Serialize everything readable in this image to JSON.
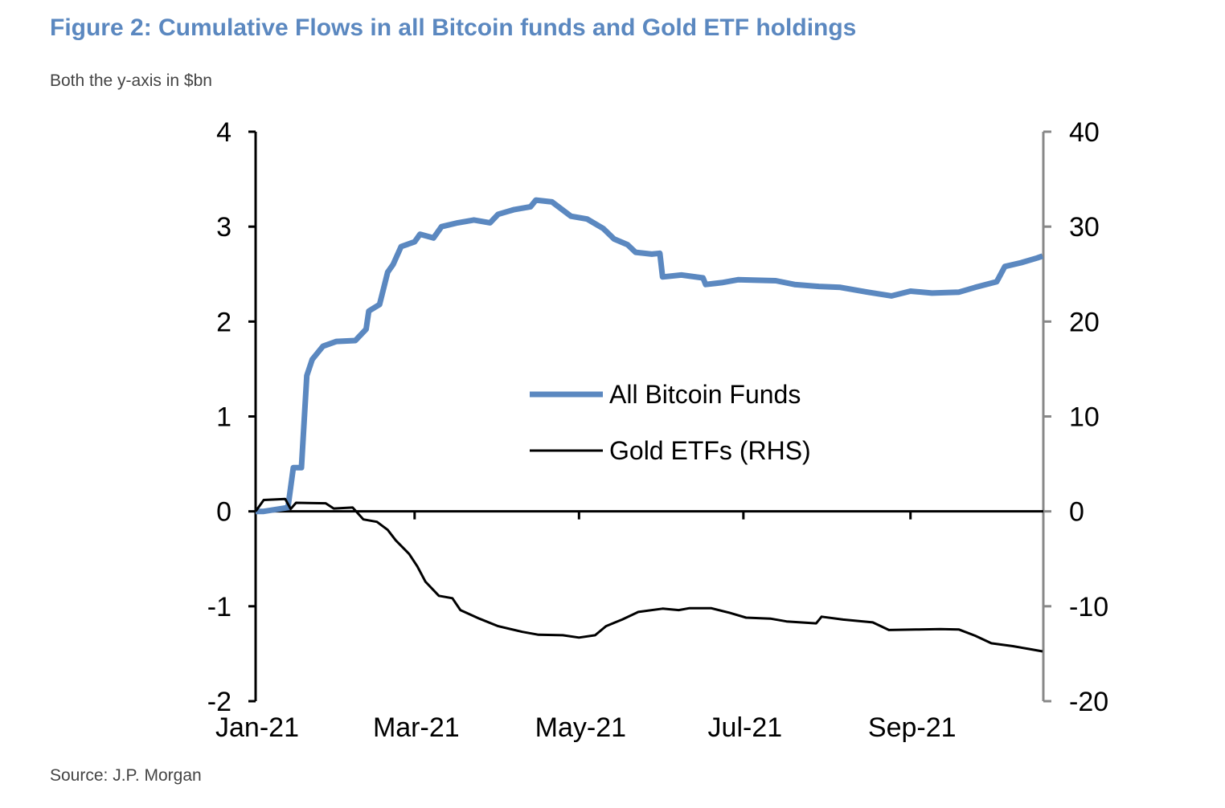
{
  "title": "Figure 2: Cumulative Flows in all Bitcoin funds and Gold ETF holdings",
  "subtitle": "Both the y-axis in $bn",
  "source": "Source: J.P. Morgan",
  "chart_data": {
    "type": "line",
    "title": "Figure 2: Cumulative Flows in all Bitcoin funds and Gold ETF holdings",
    "xlabel": "",
    "ylabel": "",
    "xlim": [
      "2021-01-01",
      "2021-10-20"
    ],
    "x_ticks": [
      {
        "date": "2021-01-01",
        "label": "Jan-21"
      },
      {
        "date": "2021-03-01",
        "label": "Mar-21"
      },
      {
        "date": "2021-05-01",
        "label": "May-21"
      },
      {
        "date": "2021-07-01",
        "label": "Jul-21"
      },
      {
        "date": "2021-09-01",
        "label": "Sep-21"
      }
    ],
    "ylim_left": [
      -2,
      4
    ],
    "y_ticks_left": [
      "4",
      "3",
      "2",
      "1",
      "0",
      "-1",
      "-2"
    ],
    "ylim_right": [
      -20,
      40
    ],
    "y_ticks_right": [
      "40",
      "30",
      "20",
      "10",
      "0",
      "-10",
      "-20"
    ],
    "grid": false,
    "legend_position": "center",
    "series": [
      {
        "name": "All Bitcoin Funds",
        "axis": "left",
        "color": "#5b88c0",
        "points": [
          [
            "2021-01-01",
            0
          ],
          [
            "2021-01-04",
            0
          ],
          [
            "2021-01-13",
            0.04
          ],
          [
            "2021-01-15",
            0.46
          ],
          [
            "2021-01-18",
            0.46
          ],
          [
            "2021-01-20",
            1.43
          ],
          [
            "2021-01-22",
            1.6
          ],
          [
            "2021-01-26",
            1.74
          ],
          [
            "2021-01-31",
            1.79
          ],
          [
            "2021-02-07",
            1.8
          ],
          [
            "2021-02-11",
            1.92
          ],
          [
            "2021-02-12",
            2.11
          ],
          [
            "2021-02-16",
            2.18
          ],
          [
            "2021-02-19",
            2.52
          ],
          [
            "2021-02-21",
            2.6
          ],
          [
            "2021-02-24",
            2.79
          ],
          [
            "2021-03-01",
            2.84
          ],
          [
            "2021-03-03",
            2.92
          ],
          [
            "2021-03-08",
            2.88
          ],
          [
            "2021-03-11",
            3.0
          ],
          [
            "2021-03-17",
            3.04
          ],
          [
            "2021-03-23",
            3.07
          ],
          [
            "2021-03-29",
            3.04
          ],
          [
            "2021-04-01",
            3.13
          ],
          [
            "2021-04-07",
            3.18
          ],
          [
            "2021-04-13",
            3.21
          ],
          [
            "2021-04-15",
            3.28
          ],
          [
            "2021-04-21",
            3.26
          ],
          [
            "2021-04-28",
            3.11
          ],
          [
            "2021-05-04",
            3.08
          ],
          [
            "2021-05-10",
            2.98
          ],
          [
            "2021-05-14",
            2.87
          ],
          [
            "2021-05-19",
            2.81
          ],
          [
            "2021-05-22",
            2.73
          ],
          [
            "2021-05-28",
            2.71
          ],
          [
            "2021-05-31",
            2.72
          ],
          [
            "2021-06-01",
            2.47
          ],
          [
            "2021-06-08",
            2.49
          ],
          [
            "2021-06-16",
            2.46
          ],
          [
            "2021-06-17",
            2.39
          ],
          [
            "2021-06-23",
            2.41
          ],
          [
            "2021-06-29",
            2.44
          ],
          [
            "2021-07-13",
            2.43
          ],
          [
            "2021-07-20",
            2.39
          ],
          [
            "2021-07-29",
            2.37
          ],
          [
            "2021-08-06",
            2.36
          ],
          [
            "2021-08-16",
            2.31
          ],
          [
            "2021-08-25",
            2.27
          ],
          [
            "2021-09-01",
            2.32
          ],
          [
            "2021-09-09",
            2.3
          ],
          [
            "2021-09-19",
            2.31
          ],
          [
            "2021-09-25",
            2.36
          ],
          [
            "2021-10-03",
            2.42
          ],
          [
            "2021-10-06",
            2.58
          ],
          [
            "2021-10-12",
            2.62
          ],
          [
            "2021-10-18",
            2.67
          ],
          [
            "2021-10-20",
            2.69
          ]
        ]
      },
      {
        "name": "Gold ETFs (RHS)",
        "axis": "right",
        "color": "#000000",
        "points": [
          [
            "2021-01-01",
            0
          ],
          [
            "2021-01-04",
            1.2
          ],
          [
            "2021-01-12",
            1.3
          ],
          [
            "2021-01-14",
            0.25
          ],
          [
            "2021-01-16",
            0.9
          ],
          [
            "2021-01-27",
            0.85
          ],
          [
            "2021-01-30",
            0.3
          ],
          [
            "2021-02-06",
            0.4
          ],
          [
            "2021-02-10",
            -0.85
          ],
          [
            "2021-02-15",
            -1.1
          ],
          [
            "2021-02-19",
            -1.95
          ],
          [
            "2021-02-22",
            -3.05
          ],
          [
            "2021-02-27",
            -4.5
          ],
          [
            "2021-03-02",
            -5.8
          ],
          [
            "2021-03-05",
            -7.4
          ],
          [
            "2021-03-10",
            -8.9
          ],
          [
            "2021-03-15",
            -9.15
          ],
          [
            "2021-03-18",
            -10.4
          ],
          [
            "2021-03-25",
            -11.3
          ],
          [
            "2021-04-01",
            -12.1
          ],
          [
            "2021-04-10",
            -12.7
          ],
          [
            "2021-04-16",
            -13.0
          ],
          [
            "2021-04-25",
            -13.05
          ],
          [
            "2021-05-01",
            -13.3
          ],
          [
            "2021-05-07",
            -13.05
          ],
          [
            "2021-05-11",
            -12.1
          ],
          [
            "2021-05-17",
            -11.4
          ],
          [
            "2021-05-23",
            -10.6
          ],
          [
            "2021-06-01",
            -10.25
          ],
          [
            "2021-06-07",
            -10.4
          ],
          [
            "2021-06-11",
            -10.2
          ],
          [
            "2021-06-19",
            -10.2
          ],
          [
            "2021-06-26",
            -10.7
          ],
          [
            "2021-07-02",
            -11.2
          ],
          [
            "2021-07-11",
            -11.3
          ],
          [
            "2021-07-17",
            -11.6
          ],
          [
            "2021-07-28",
            -11.8
          ],
          [
            "2021-07-30",
            -11.1
          ],
          [
            "2021-08-07",
            -11.4
          ],
          [
            "2021-08-18",
            -11.7
          ],
          [
            "2021-08-24",
            -12.5
          ],
          [
            "2021-09-03",
            -12.45
          ],
          [
            "2021-09-12",
            -12.4
          ],
          [
            "2021-09-19",
            -12.45
          ],
          [
            "2021-09-25",
            -13.1
          ],
          [
            "2021-10-01",
            -13.9
          ],
          [
            "2021-10-09",
            -14.2
          ],
          [
            "2021-10-15",
            -14.5
          ],
          [
            "2021-10-20",
            -14.75
          ]
        ]
      }
    ]
  }
}
